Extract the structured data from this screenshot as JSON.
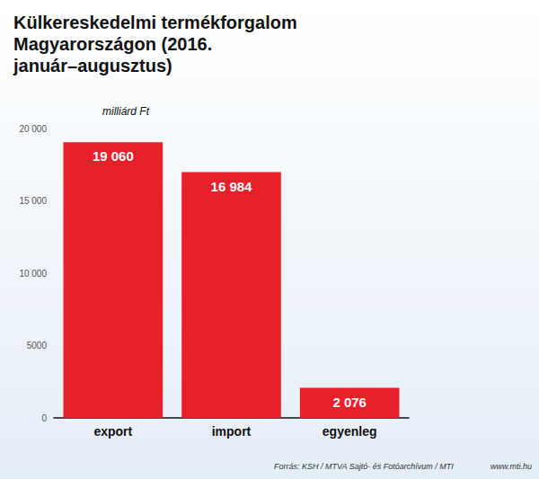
{
  "chart_data": {
    "type": "bar",
    "title": "Külkereskedelmi termékforgalom Magyarországon (2016. január–augusztus)",
    "unit": "milliárd Ft",
    "categories": [
      "export",
      "import",
      "egyenleg"
    ],
    "values": [
      19060,
      16984,
      2076
    ],
    "value_labels": [
      "19 060",
      "16 984",
      "2 076"
    ],
    "color": "#e8202a",
    "ylim": [
      0,
      20000
    ],
    "yticks": [
      0,
      5000,
      {
        "value": 10000,
        "label": "10 000"
      },
      {
        "value": 15000,
        "label": "15 000"
      },
      {
        "value": 20000,
        "label": "20 000"
      }
    ],
    "grid": false,
    "data_labels": true,
    "source": "Forrás: KSH / MTVA Sajtó- és Fotóarchívum / MTI",
    "website": "www.mti.hu"
  }
}
